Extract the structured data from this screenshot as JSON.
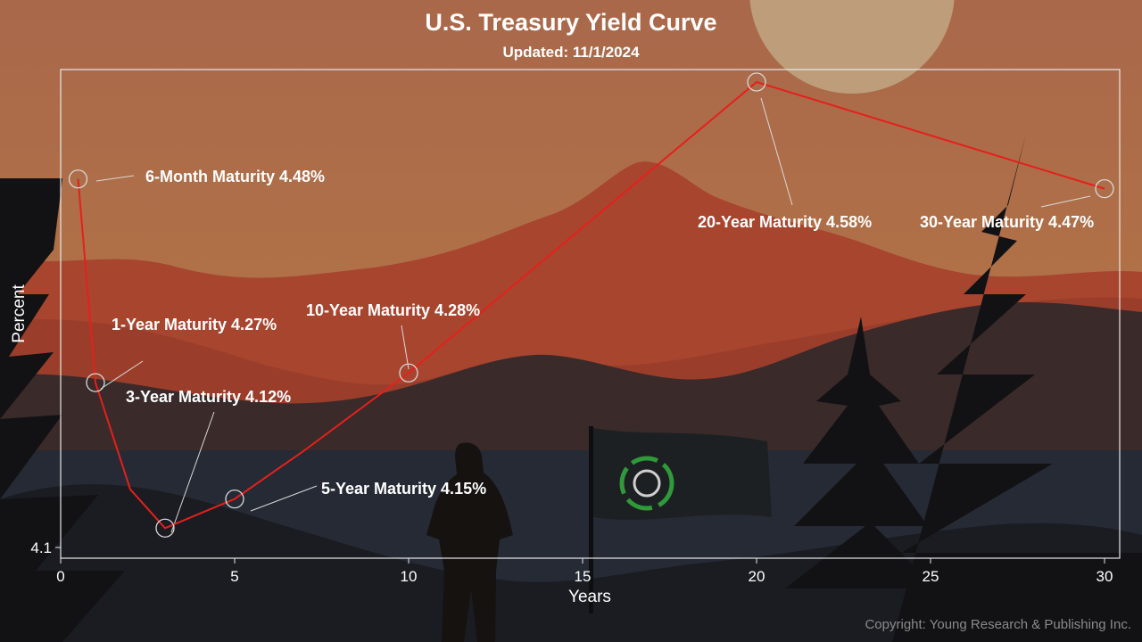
{
  "chart_data": {
    "type": "line",
    "title": "U.S. Treasury Yield Curve",
    "subtitle": "Updated: 11/1/2024",
    "xlabel": "Years",
    "ylabel": "Percent",
    "xlim": [
      0,
      30.5
    ],
    "ylim": [
      4.08,
      4.6
    ],
    "x_ticks": [
      0,
      5,
      10,
      15,
      20,
      25,
      30
    ],
    "y_ticks": [
      4.1
    ],
    "y_tick_labels": [
      "4.1"
    ],
    "grid": false,
    "series": [
      {
        "color": "#e5201c",
        "points": [
          {
            "x": 0.5,
            "y": 4.48
          },
          {
            "x": 1,
            "y": 4.27
          },
          {
            "x": 2,
            "y": 4.16
          },
          {
            "x": 3,
            "y": 4.12
          },
          {
            "x": 5,
            "y": 4.15
          },
          {
            "x": 7,
            "y": 4.2
          },
          {
            "x": 10,
            "y": 4.28
          },
          {
            "x": 20,
            "y": 4.58
          },
          {
            "x": 30,
            "y": 4.47
          }
        ]
      }
    ],
    "annotations": [
      {
        "x": 0.5,
        "y": 4.48,
        "label": "6-Month Maturity 4.48%"
      },
      {
        "x": 1,
        "y": 4.27,
        "label": "1-Year Maturity 4.27%"
      },
      {
        "x": 3,
        "y": 4.12,
        "label": "3-Year Maturity 4.12%"
      },
      {
        "x": 5,
        "y": 4.15,
        "label": "5-Year Maturity 4.15%"
      },
      {
        "x": 10,
        "y": 4.28,
        "label": "10-Year Maturity 4.28%"
      },
      {
        "x": 20,
        "y": 4.58,
        "label": "20-Year Maturity 4.58%"
      },
      {
        "x": 30,
        "y": 4.47,
        "label": "30-Year Maturity 4.47%"
      }
    ]
  },
  "copyright": "Copyright: Young Research & Publishing Inc.",
  "colors": {
    "line": "#e5201c",
    "sky": "#ad6a47",
    "mountain": "#a5432e",
    "marker": "#d9d9d9",
    "text": "#ffffff"
  }
}
